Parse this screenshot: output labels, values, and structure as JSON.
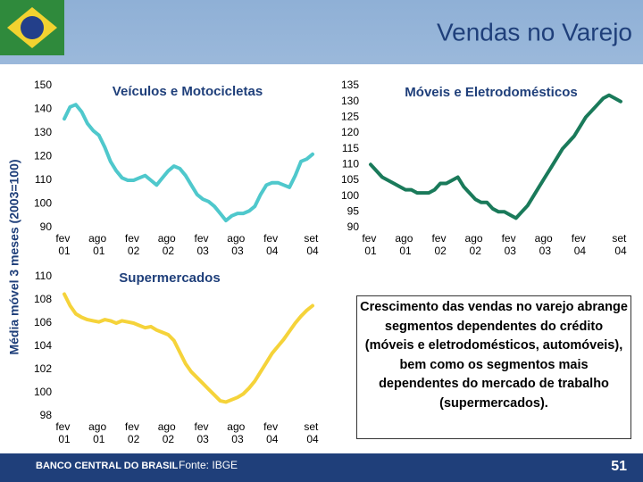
{
  "slide": {
    "title": "Vendas no Varejo",
    "y_axis_label": "Média móvel 3 meses (2003=100)",
    "note": "Crescimento das vendas no varejo abrange segmentos dependentes do crédito (móveis e eletrodomésticos, automóveis), bem como os segmentos mais dependentes do mercado de trabalho (supermercados).",
    "source": "Fonte: IBGE",
    "logo": "BANCO CENTRAL DO BRASIL",
    "page_number": 51
  },
  "chart_data": [
    {
      "type": "line",
      "title": "Veículos e Motocicletas",
      "color": "#4fc8cc",
      "categories": [
        "fev 01",
        null,
        null,
        null,
        null,
        null,
        "ago 01",
        null,
        null,
        null,
        null,
        null,
        "fev 02",
        null,
        null,
        null,
        null,
        null,
        "ago 02",
        null,
        null,
        null,
        null,
        null,
        "fev 03",
        null,
        null,
        null,
        null,
        null,
        "ago 03",
        null,
        null,
        null,
        null,
        null,
        "fev 04",
        null,
        null,
        null,
        null,
        null,
        null,
        "set 04"
      ],
      "values": [
        136,
        141,
        142,
        139,
        134,
        131,
        129,
        124,
        118,
        114,
        111,
        110,
        110,
        111,
        112,
        110,
        108,
        111,
        114,
        116,
        115,
        112,
        108,
        104,
        102,
        101,
        99,
        96,
        93,
        95,
        96,
        96,
        97,
        99,
        104,
        108,
        109,
        109,
        108,
        107,
        112,
        118,
        119,
        121
      ],
      "ylim": [
        90,
        150
      ],
      "yticks": [
        90,
        100,
        110,
        120,
        130,
        140,
        150
      ]
    },
    {
      "type": "line",
      "title": "Móveis e Eletrodomésticos",
      "color": "#1a7a5a",
      "categories": [
        "fev 01",
        null,
        null,
        null,
        null,
        null,
        "ago 01",
        null,
        null,
        null,
        null,
        null,
        "fev 02",
        null,
        null,
        null,
        null,
        null,
        "ago 02",
        null,
        null,
        null,
        null,
        null,
        "fev 03",
        null,
        null,
        null,
        null,
        null,
        "ago 03",
        null,
        null,
        null,
        null,
        null,
        "fev 04",
        null,
        null,
        null,
        null,
        null,
        null,
        "set 04"
      ],
      "values": [
        110,
        108,
        106,
        105,
        104,
        103,
        102,
        102,
        101,
        101,
        101,
        102,
        104,
        104,
        105,
        106,
        103,
        101,
        99,
        98,
        98,
        96,
        95,
        95,
        94,
        93,
        95,
        97,
        100,
        103,
        106,
        109,
        112,
        115,
        117,
        119,
        122,
        125,
        127,
        129,
        131,
        132,
        131,
        130
      ],
      "ylim": [
        90,
        135
      ],
      "yticks": [
        90,
        95,
        100,
        105,
        110,
        115,
        120,
        125,
        130,
        135
      ]
    },
    {
      "type": "line",
      "title": "Supermercados",
      "color": "#f5d33a",
      "categories": [
        "fev 01",
        null,
        null,
        null,
        null,
        null,
        "ago 01",
        null,
        null,
        null,
        null,
        null,
        "fev 02",
        null,
        null,
        null,
        null,
        null,
        "ago 02",
        null,
        null,
        null,
        null,
        null,
        "fev 03",
        null,
        null,
        null,
        null,
        null,
        "ago 03",
        null,
        null,
        null,
        null,
        null,
        "fev 04",
        null,
        null,
        null,
        null,
        null,
        null,
        "set 04"
      ],
      "values": [
        108.5,
        107.5,
        106.8,
        106.5,
        106.3,
        106.2,
        106.1,
        106.3,
        106.2,
        106.0,
        106.2,
        106.1,
        106.0,
        105.8,
        105.6,
        105.7,
        105.4,
        105.2,
        105.0,
        104.5,
        103.5,
        102.5,
        101.8,
        101.3,
        100.8,
        100.3,
        99.8,
        99.3,
        99.2,
        99.4,
        99.6,
        99.9,
        100.4,
        101.0,
        101.8,
        102.6,
        103.4,
        104.0,
        104.6,
        105.3,
        106.0,
        106.6,
        107.1,
        107.5
      ],
      "ylim": [
        98,
        110
      ],
      "yticks": [
        98,
        100,
        102,
        104,
        106,
        108,
        110
      ]
    }
  ]
}
